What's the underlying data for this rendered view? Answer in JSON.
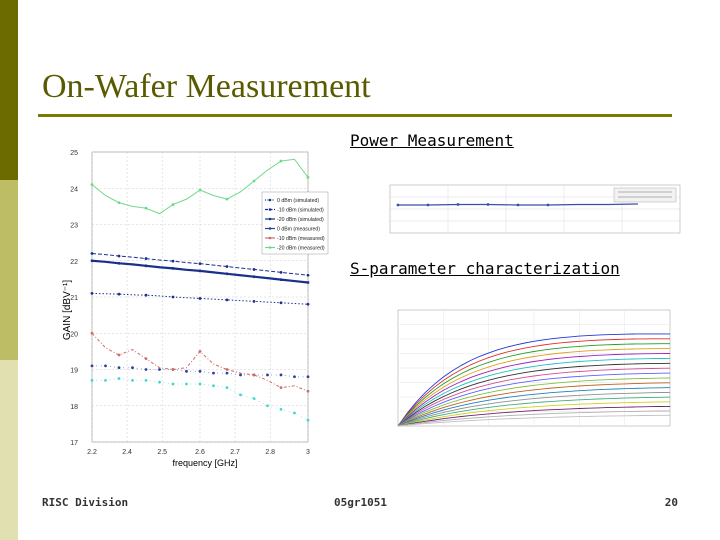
{
  "slide": {
    "title": "On-Wafer Measurement",
    "power_label": "Power Measurement",
    "sparam_label": "S-parameter characterization",
    "footer_left": "RISC Division",
    "footer_center": "05gr1051",
    "footer_right": "20"
  },
  "colors": {
    "sidebar_dark": "#6b6b00",
    "sidebar_mid": "#bdbd66",
    "sidebar_light": "#e0e0b0",
    "title": "#5a5a00"
  },
  "chart_data": [
    {
      "type": "line",
      "xlabel": "frequency [GHz]",
      "ylabel": "GAIN [dBV⁻¹]",
      "xlim": [
        2.2,
        3.0
      ],
      "ylim": [
        17,
        25
      ],
      "xticks": [
        "2.2",
        "2.4",
        "2.5",
        "2.6",
        "2.7",
        "2.8",
        "3"
      ],
      "yticks": [
        "17",
        "18",
        "19",
        "20",
        "21",
        "22",
        "23",
        "24",
        "25"
      ],
      "grid": true,
      "legend_position": "right-center",
      "x": [
        2.2,
        2.25,
        2.3,
        2.35,
        2.4,
        2.45,
        2.5,
        2.55,
        2.6,
        2.65,
        2.7,
        2.75,
        2.8,
        2.85,
        2.9,
        2.95,
        3.0
      ],
      "series": [
        {
          "name": "0 dBm (simulated)",
          "color": "#1a2f8c",
          "style": "dotted",
          "values": [
            21.1,
            21.09,
            21.08,
            21.06,
            21.05,
            21.03,
            21.0,
            20.98,
            20.96,
            20.94,
            20.92,
            20.9,
            20.88,
            20.86,
            20.84,
            20.82,
            20.8
          ]
        },
        {
          "name": "-10 dBm (simulated)",
          "color": "#1a2f8c",
          "style": "dashed",
          "values": [
            22.2,
            22.17,
            22.13,
            22.1,
            22.06,
            22.02,
            21.99,
            21.95,
            21.92,
            21.88,
            21.84,
            21.8,
            21.76,
            21.72,
            21.68,
            21.64,
            21.6
          ]
        },
        {
          "name": "-20 dBm (simulated)",
          "color": "#1a2f8c",
          "style": "solid",
          "values": [
            22.0,
            21.97,
            21.93,
            21.9,
            21.86,
            21.82,
            21.79,
            21.75,
            21.72,
            21.68,
            21.64,
            21.6,
            21.56,
            21.52,
            21.48,
            21.44,
            21.4
          ]
        },
        {
          "name": "0 dBm (measured)",
          "color": "#2b3fa0",
          "style": "marker",
          "values": [
            19.1,
            19.1,
            19.05,
            19.05,
            19.0,
            19.0,
            19.0,
            18.95,
            18.95,
            18.9,
            18.9,
            18.85,
            18.85,
            18.85,
            18.85,
            18.8,
            18.8
          ]
        },
        {
          "name": "-10 dBm (measured)",
          "color": "#cf6a6a",
          "style": "dashdot",
          "values": [
            20.0,
            19.6,
            19.4,
            19.55,
            19.3,
            19.05,
            19.0,
            19.05,
            19.5,
            19.15,
            19.0,
            18.9,
            18.85,
            18.7,
            18.5,
            18.55,
            18.4
          ]
        },
        {
          "name": "-20 dBm (measured)",
          "color": "#6fd88a",
          "style": "solid",
          "values": [
            24.1,
            23.8,
            23.6,
            23.5,
            23.45,
            23.3,
            23.55,
            23.7,
            23.95,
            23.8,
            23.7,
            23.9,
            24.2,
            24.5,
            24.75,
            24.8,
            24.3
          ]
        },
        {
          "name": "",
          "color": "#3fd8d0",
          "style": "marker",
          "values": [
            18.7,
            18.7,
            18.75,
            18.7,
            18.7,
            18.65,
            18.6,
            18.6,
            18.6,
            18.55,
            18.5,
            18.3,
            18.2,
            18.0,
            17.9,
            17.8,
            17.6
          ]
        }
      ]
    }
  ]
}
